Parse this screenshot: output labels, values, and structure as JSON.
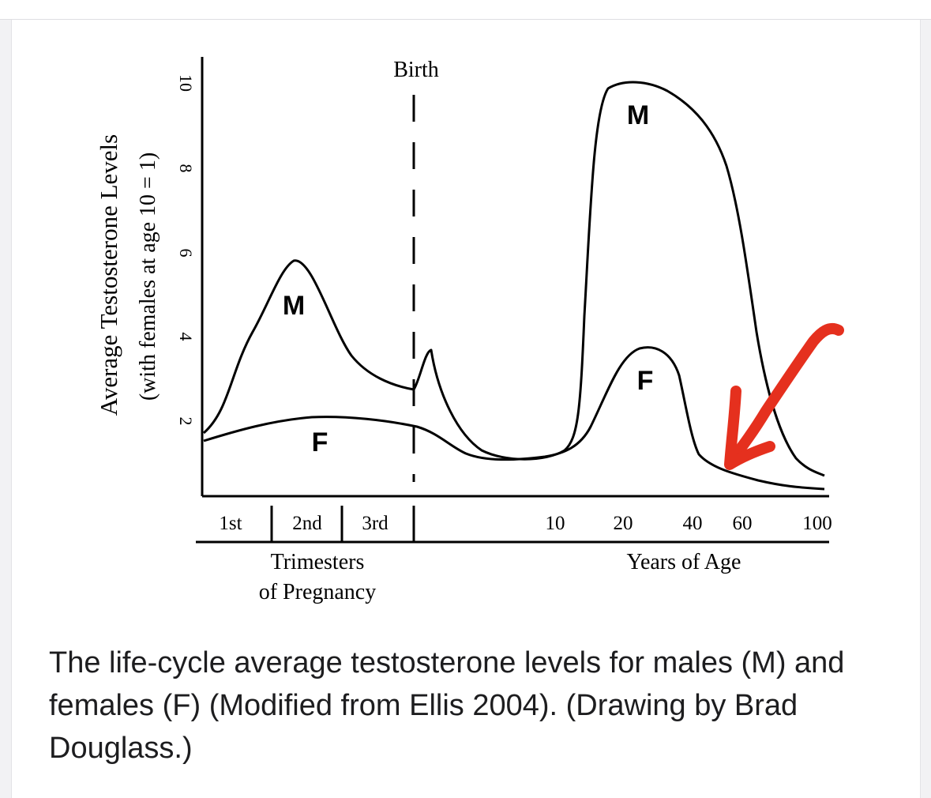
{
  "caption": "The life-cycle average testosterone levels for males (M) and females (F) (Modified from Ellis 2004). (Drawing by Brad Douglass.)",
  "chart_data": {
    "type": "line",
    "ylabel": "Average Testosterone Levels",
    "ylabel_sub": "(with females at age 10 = 1)",
    "ylim": [
      0,
      10
    ],
    "yticks": [
      "2",
      "4",
      "6",
      "8",
      "10"
    ],
    "birth_label": "Birth",
    "x_periods": [
      {
        "label": "1st"
      },
      {
        "label": "2nd"
      },
      {
        "label": "3rd"
      }
    ],
    "x_period_title_line1": "Trimesters",
    "x_period_title_line2": "of Pregnancy",
    "x_age_ticks": [
      "10",
      "20",
      "40",
      "60",
      "100"
    ],
    "x_age_title": "Years of Age",
    "series": [
      {
        "name": "M",
        "color": "#000000"
      },
      {
        "name": "F",
        "color": "#000000"
      }
    ],
    "annotation_arrow_color": "#e5301e"
  }
}
